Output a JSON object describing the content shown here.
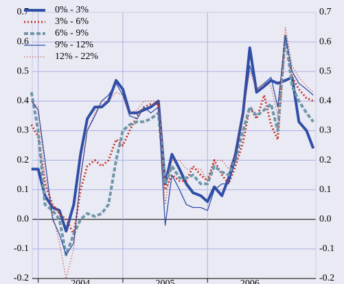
{
  "chart_data": {
    "type": "line",
    "x": [
      2003.92,
      2004.0,
      2004.08,
      2004.17,
      2004.25,
      2004.33,
      2004.42,
      2004.5,
      2004.58,
      2004.67,
      2004.75,
      2004.83,
      2004.92,
      2005.0,
      2005.08,
      2005.17,
      2005.25,
      2005.33,
      2005.42,
      2005.5,
      2005.58,
      2005.67,
      2005.75,
      2005.83,
      2005.92,
      2006.0,
      2006.08,
      2006.17,
      2006.25,
      2006.33,
      2006.42,
      2006.5,
      2006.58,
      2006.67,
      2006.75,
      2006.83,
      2006.92,
      2007.0,
      2007.08,
      2007.17,
      2007.25
    ],
    "series": [
      {
        "name": "0% - 3%",
        "color": "#2f4fa6",
        "linestyle": "thick",
        "values": [
          0.17,
          0.17,
          0.08,
          0.04,
          0.03,
          -0.04,
          0.05,
          0.22,
          0.34,
          0.38,
          0.38,
          0.4,
          0.47,
          0.44,
          0.36,
          0.36,
          0.37,
          0.38,
          0.4,
          0.12,
          0.22,
          0.17,
          0.12,
          0.09,
          0.08,
          0.06,
          0.11,
          0.08,
          0.14,
          0.22,
          0.36,
          0.58,
          0.43,
          0.45,
          0.47,
          0.46,
          0.47,
          0.48,
          0.33,
          0.3,
          0.24
        ]
      },
      {
        "name": "3% - 6%",
        "color": "#c0392b",
        "linestyle": "dotted",
        "values": [
          0.32,
          0.28,
          0.12,
          0.05,
          0.02,
          0.0,
          -0.05,
          0.1,
          0.18,
          0.2,
          0.18,
          0.2,
          0.27,
          0.25,
          0.3,
          0.35,
          0.38,
          0.39,
          0.39,
          0.1,
          0.15,
          0.13,
          0.13,
          0.18,
          0.15,
          0.13,
          0.2,
          0.15,
          0.12,
          0.18,
          0.26,
          0.38,
          0.34,
          0.42,
          0.32,
          0.27,
          0.62,
          0.48,
          0.44,
          0.41,
          0.4
        ]
      },
      {
        "name": "6% - 9%",
        "color": "#6f97a9",
        "linestyle": "dashed",
        "values": [
          0.43,
          0.3,
          0.05,
          0.03,
          0.0,
          -0.12,
          -0.05,
          0.0,
          0.02,
          0.01,
          0.02,
          0.05,
          0.2,
          0.3,
          0.32,
          0.33,
          0.33,
          0.34,
          0.36,
          0.12,
          0.18,
          0.14,
          0.14,
          0.15,
          0.12,
          0.12,
          0.18,
          0.16,
          0.15,
          0.2,
          0.3,
          0.38,
          0.35,
          0.37,
          0.39,
          0.3,
          0.62,
          0.45,
          0.4,
          0.36,
          0.33
        ]
      },
      {
        "name": "9% - 12%",
        "color": "#2f4fa6",
        "linestyle": "solid",
        "values": [
          0.4,
          0.37,
          0.2,
          0.0,
          -0.05,
          -0.12,
          -0.08,
          0.14,
          0.3,
          0.35,
          0.4,
          0.42,
          0.46,
          0.42,
          0.35,
          0.34,
          0.38,
          0.36,
          0.38,
          -0.02,
          0.15,
          0.1,
          0.05,
          0.04,
          0.04,
          0.03,
          0.1,
          0.12,
          0.12,
          0.2,
          0.35,
          0.52,
          0.44,
          0.46,
          0.48,
          0.38,
          0.62,
          0.5,
          0.46,
          0.44,
          0.42
        ]
      },
      {
        "name": "12% - 22%",
        "color": "#c0392b",
        "linestyle": "thin-dotted",
        "values": [
          0.4,
          0.38,
          0.15,
          0.02,
          -0.08,
          -0.2,
          -0.1,
          0.15,
          0.3,
          0.36,
          0.4,
          0.4,
          0.43,
          0.42,
          0.36,
          0.37,
          0.4,
          0.4,
          0.4,
          0.05,
          0.2,
          0.2,
          0.17,
          0.17,
          0.17,
          0.13,
          0.2,
          0.2,
          0.17,
          0.22,
          0.36,
          0.5,
          0.44,
          0.46,
          0.45,
          0.35,
          0.65,
          0.52,
          0.48,
          0.45,
          0.43
        ]
      }
    ],
    "xlim": [
      2003.93,
      2007.28
    ],
    "xticks": [
      2004,
      2005,
      2006
    ],
    "ylim": [
      -0.2,
      0.7
    ],
    "yticks": [
      -0.2,
      -0.1,
      {
        "value": 0,
        "label": "0.0"
      },
      0.1,
      0.2,
      0.3,
      0.4,
      0.5,
      0.6,
      0.7
    ],
    "grid": true,
    "legend": "top-left"
  }
}
